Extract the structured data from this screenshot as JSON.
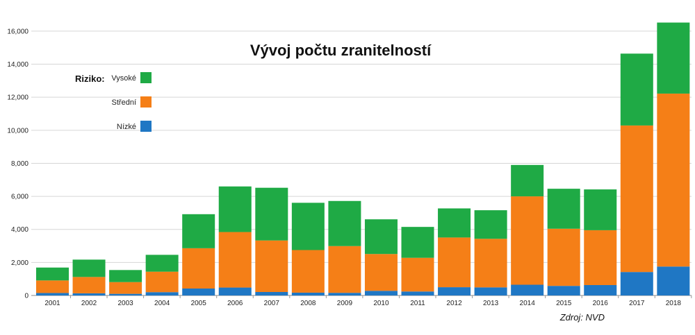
{
  "chart_data": {
    "type": "bar",
    "stacked": true,
    "title": "Vývoj počtu zranitelností",
    "source": "Zdroj: NVD",
    "legend_title": "Riziko:",
    "legend_position": "top-left",
    "categories": [
      "2001",
      "2002",
      "2003",
      "2004",
      "2005",
      "2006",
      "2007",
      "2008",
      "2009",
      "2010",
      "2011",
      "2012",
      "2013",
      "2014",
      "2015",
      "2016",
      "2017",
      "2018"
    ],
    "series": [
      {
        "name": "Nízké",
        "color": "#1f77c4",
        "values": [
          150,
          130,
          100,
          200,
          420,
          480,
          210,
          170,
          160,
          280,
          240,
          500,
          490,
          650,
          580,
          630,
          1420,
          1750
        ]
      },
      {
        "name": "Střední",
        "color": "#f57f17",
        "values": [
          760,
          990,
          710,
          1240,
          2440,
          3360,
          3120,
          2580,
          2830,
          2230,
          2040,
          3010,
          2940,
          5350,
          3460,
          3320,
          8870,
          10470
        ]
      },
      {
        "name": "Vysoké",
        "color": "#1faa45",
        "values": [
          780,
          1050,
          730,
          1020,
          2060,
          2760,
          3190,
          2860,
          2730,
          2100,
          1870,
          1760,
          1730,
          1900,
          2420,
          2470,
          4350,
          4300
        ]
      }
    ],
    "yticks": [
      "0",
      "2,000",
      "4,000",
      "6,000",
      "8,000",
      "10,000",
      "12,000",
      "14,000",
      "16,000"
    ],
    "ylim": [
      0,
      16500
    ],
    "grid": true
  }
}
